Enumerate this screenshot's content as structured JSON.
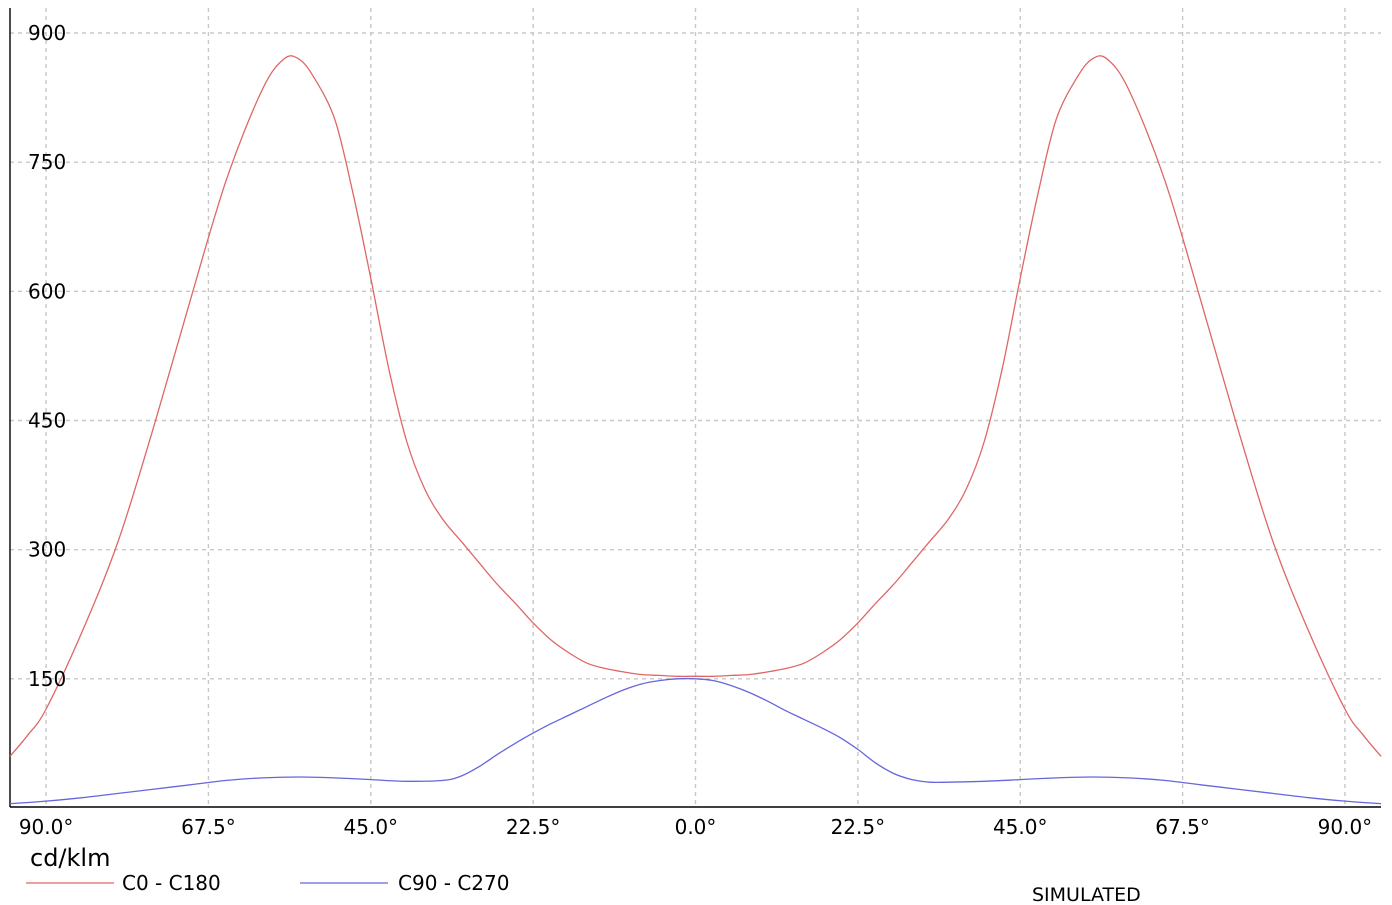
{
  "chart_data": {
    "type": "line",
    "ylabel": "cd/klm",
    "note": "SIMULATED",
    "ylim": [
      0,
      900
    ],
    "xlim": [
      -95,
      95
    ],
    "y_ticks": [
      150,
      300,
      450,
      600,
      750,
      900
    ],
    "y_tick_labels": [
      "150",
      "300",
      "450",
      "600",
      "750",
      "900"
    ],
    "x_ticks": [
      -90,
      -67.5,
      -45,
      -22.5,
      0,
      22.5,
      45,
      67.5,
      90
    ],
    "x_tick_labels": [
      "90.0°",
      "67.5°",
      "45.0°",
      "22.5°",
      "0.0°",
      "22.5°",
      "45.0°",
      "67.5°",
      "90.0°"
    ],
    "grid": true,
    "legend_position": "bottom-left",
    "colors": {
      "series_1": "#e06666",
      "series_2": "#6666dd",
      "grid": "#c8c8c8"
    },
    "series": [
      {
        "name": "C0 - C180",
        "x": [
          -95,
          -92.5,
          -90,
          -85,
          -80,
          -75,
          -70,
          -65,
          -60,
          -57,
          -55,
          -53,
          -50,
          -47.5,
          -45,
          -42.5,
          -40,
          -37.5,
          -35,
          -32.5,
          -30,
          -27.5,
          -25,
          -22.5,
          -20,
          -17.5,
          -15,
          -12.5,
          -10,
          -7.5,
          -5,
          -2.5,
          0,
          2.5,
          5,
          7.5,
          10,
          12.5,
          15,
          17.5,
          20,
          22.5,
          25,
          27.5,
          30,
          32.5,
          35,
          37.5,
          40,
          42.5,
          45,
          47.5,
          50,
          53,
          55,
          57,
          60,
          65,
          70,
          75,
          80,
          85,
          90,
          92.5,
          95
        ],
        "y": [
          60,
          85,
          115,
          205,
          310,
          445,
          590,
          730,
          835,
          870,
          870,
          850,
          800,
          715,
          615,
          510,
          425,
          370,
          335,
          310,
          285,
          260,
          238,
          215,
          195,
          180,
          168,
          162,
          158,
          155,
          154,
          153,
          153,
          153,
          154,
          155,
          158,
          162,
          168,
          180,
          195,
          215,
          238,
          260,
          285,
          310,
          335,
          370,
          425,
          510,
          615,
          715,
          800,
          850,
          870,
          870,
          835,
          730,
          590,
          445,
          310,
          205,
          115,
          85,
          60
        ]
      },
      {
        "name": "C90 - C270",
        "x": [
          -95,
          -90,
          -85,
          -80,
          -75,
          -70,
          -65,
          -60,
          -55,
          -50,
          -45,
          -40,
          -35,
          -32.5,
          -30,
          -27.5,
          -25,
          -22.5,
          -20,
          -17.5,
          -15,
          -12.5,
          -10,
          -7.5,
          -5,
          -2.5,
          0,
          2.5,
          5,
          7.5,
          10,
          12.5,
          15,
          17.5,
          20,
          22.5,
          25,
          27.5,
          30,
          32.5,
          35,
          40,
          45,
          50,
          55,
          60,
          65,
          70,
          75,
          80,
          85,
          90,
          95
        ],
        "y": [
          5,
          8,
          12,
          17,
          22,
          27,
          32,
          35,
          36,
          35,
          33,
          31,
          32,
          37,
          48,
          62,
          75,
          87,
          98,
          108,
          118,
          128,
          137,
          144,
          148,
          150,
          150,
          148,
          142,
          134,
          124,
          113,
          103,
          93,
          82,
          68,
          52,
          40,
          33,
          30,
          30,
          31,
          33,
          35,
          36,
          35,
          32,
          27,
          22,
          17,
          12,
          8,
          5
        ]
      }
    ]
  }
}
